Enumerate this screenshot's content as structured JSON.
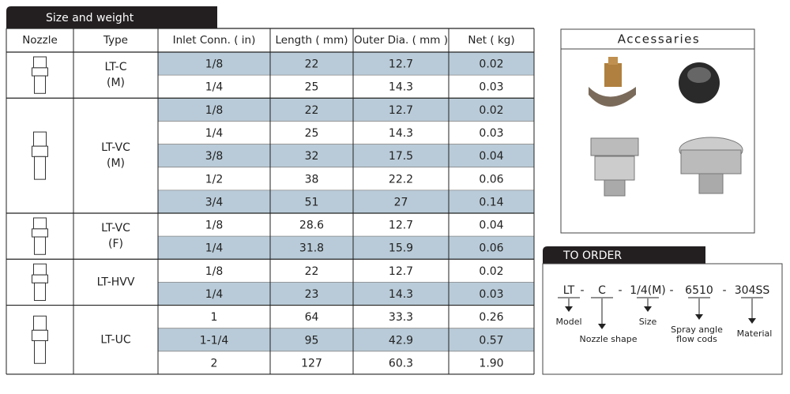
{
  "header": {
    "title": "Size and weight"
  },
  "table": {
    "columns": [
      "Nozzle",
      "Type",
      "Inlet Conn.  ( in)",
      "Length ( mm)",
      "Outer Dia. ( mm )",
      "Net ( kg)"
    ],
    "groups": [
      {
        "type": [
          "LT-C",
          "(M)"
        ],
        "rows": [
          [
            "1/8",
            "22",
            "12.7",
            "0.02"
          ],
          [
            "1/4",
            "25",
            "14.3",
            "0.03"
          ]
        ]
      },
      {
        "type": [
          "LT-VC",
          "(M)"
        ],
        "rows": [
          [
            "1/8",
            "22",
            "12.7",
            "0.02"
          ],
          [
            "1/4",
            "25",
            "14.3",
            "0.03"
          ],
          [
            "3/8",
            "32",
            "17.5",
            "0.04"
          ],
          [
            "1/2",
            "38",
            "22.2",
            "0.06"
          ],
          [
            "3/4",
            "51",
            "27",
            "0.14"
          ]
        ]
      },
      {
        "type": [
          "LT-VC",
          "(F)"
        ],
        "rows": [
          [
            "1/8",
            "28.6",
            "12.7",
            "0.04"
          ],
          [
            "1/4",
            "31.8",
            "15.9",
            "0.06"
          ]
        ]
      },
      {
        "type": [
          "LT-HVV"
        ],
        "rows": [
          [
            "1/8",
            "22",
            "12.7",
            "0.02"
          ],
          [
            "1/4",
            "23",
            "14.3",
            "0.03"
          ]
        ]
      },
      {
        "type": [
          "LT-UC"
        ],
        "rows": [
          [
            "1",
            "64",
            "33.3",
            "0.26"
          ],
          [
            "1-1/4",
            "95",
            "42.9",
            "0.57"
          ],
          [
            "2",
            "127",
            "60.3",
            "1.90"
          ]
        ]
      }
    ]
  },
  "accessories": {
    "title": "Accessaries"
  },
  "order": {
    "title": "TO ORDER",
    "codes": [
      "LT",
      "C",
      "1/4(M)",
      "6510",
      "304SS"
    ],
    "separator": "-",
    "labels": [
      [
        "Model"
      ],
      [
        "Nozzle shape"
      ],
      [
        "Size"
      ],
      [
        "Spray angle",
        "flow cods"
      ],
      [
        "Material"
      ]
    ]
  }
}
